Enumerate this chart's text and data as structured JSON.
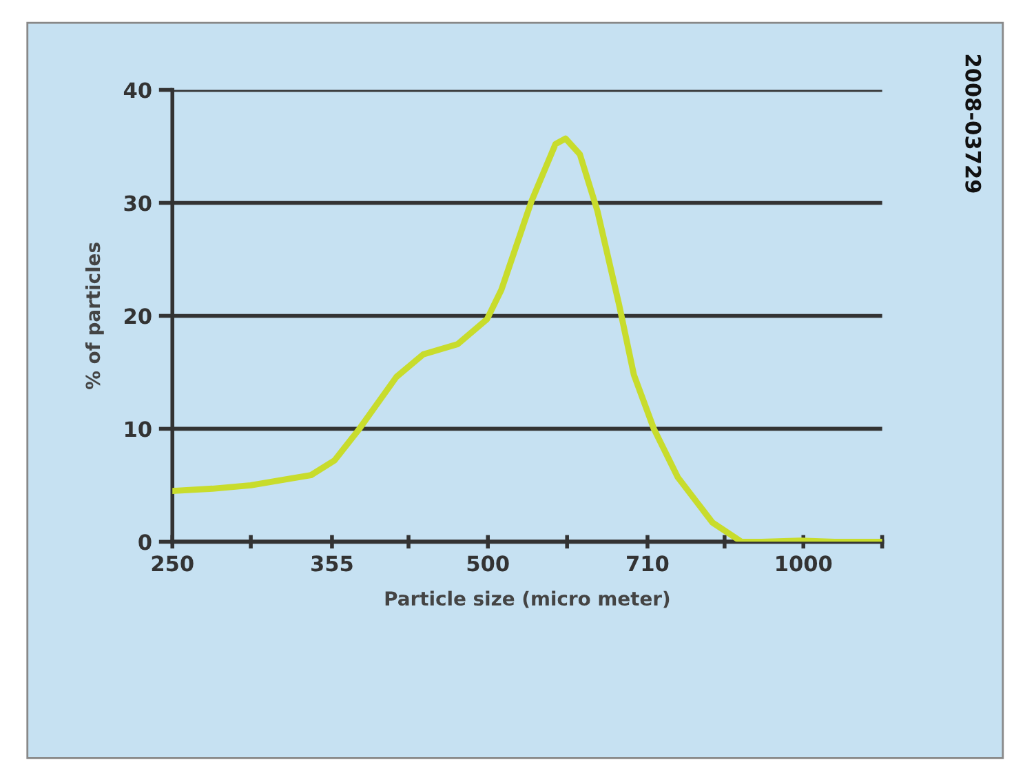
{
  "chart_data": {
    "type": "line",
    "xlabel": "Particle size (micro meter)",
    "ylabel": "% of particles",
    "annotations": [
      "2008-03729"
    ],
    "log": "x",
    "x": [
      250,
      273,
      297,
      324,
      339,
      357,
      377,
      409,
      434,
      468,
      499,
      515,
      550,
      580,
      593,
      612,
      636,
      667,
      689,
      720,
      759,
      819,
      873,
      912,
      994,
      1071,
      1189
    ],
    "series": [
      {
        "color": "#c8dc2c",
        "values": [
          4.5,
          4.7,
          5.0,
          5.6,
          5.9,
          7.2,
          10.0,
          14.6,
          16.6,
          17.5,
          19.7,
          22.3,
          30.1,
          35.2,
          35.7,
          34.3,
          29.3,
          21.0,
          14.8,
          10.0,
          5.7,
          1.7,
          0,
          0,
          0.1,
          0,
          0
        ]
      }
    ],
    "xlim": [
      250,
      1189
    ],
    "xticks": [
      250,
      {
        "value": 297,
        "label": null
      },
      355,
      {
        "value": 420,
        "label": null
      },
      500,
      {
        "value": 595,
        "label": null
      },
      710,
      {
        "value": 841,
        "label": null
      },
      1000,
      {
        "value": 1189,
        "label": null
      }
    ],
    "ylim": [
      0,
      40
    ],
    "yticks": [
      0,
      10,
      20,
      30,
      40
    ],
    "grid": "y",
    "marker": "none",
    "line_style": "solid"
  }
}
